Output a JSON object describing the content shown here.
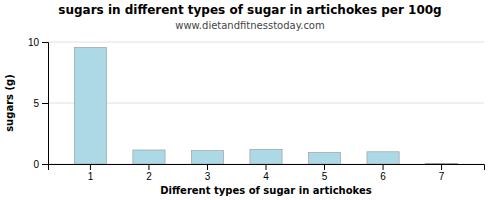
{
  "chart_data": {
    "type": "bar",
    "title": "sugars in different types of sugar in artichokes per 100g",
    "subtitle": "www.dietandfitnesstoday.com",
    "x_label": "Different types of sugar in artichokes",
    "y_label": "sugars (g)",
    "categories": [
      1,
      2,
      3,
      4,
      5,
      6,
      7
    ],
    "values": [
      9.56,
      1.15,
      1.1,
      1.2,
      0.95,
      1.0,
      0.05
    ],
    "color": "#add8e6",
    "ylim": [
      0,
      10
    ],
    "yticks": [
      0,
      5,
      10
    ],
    "grid": true
  }
}
